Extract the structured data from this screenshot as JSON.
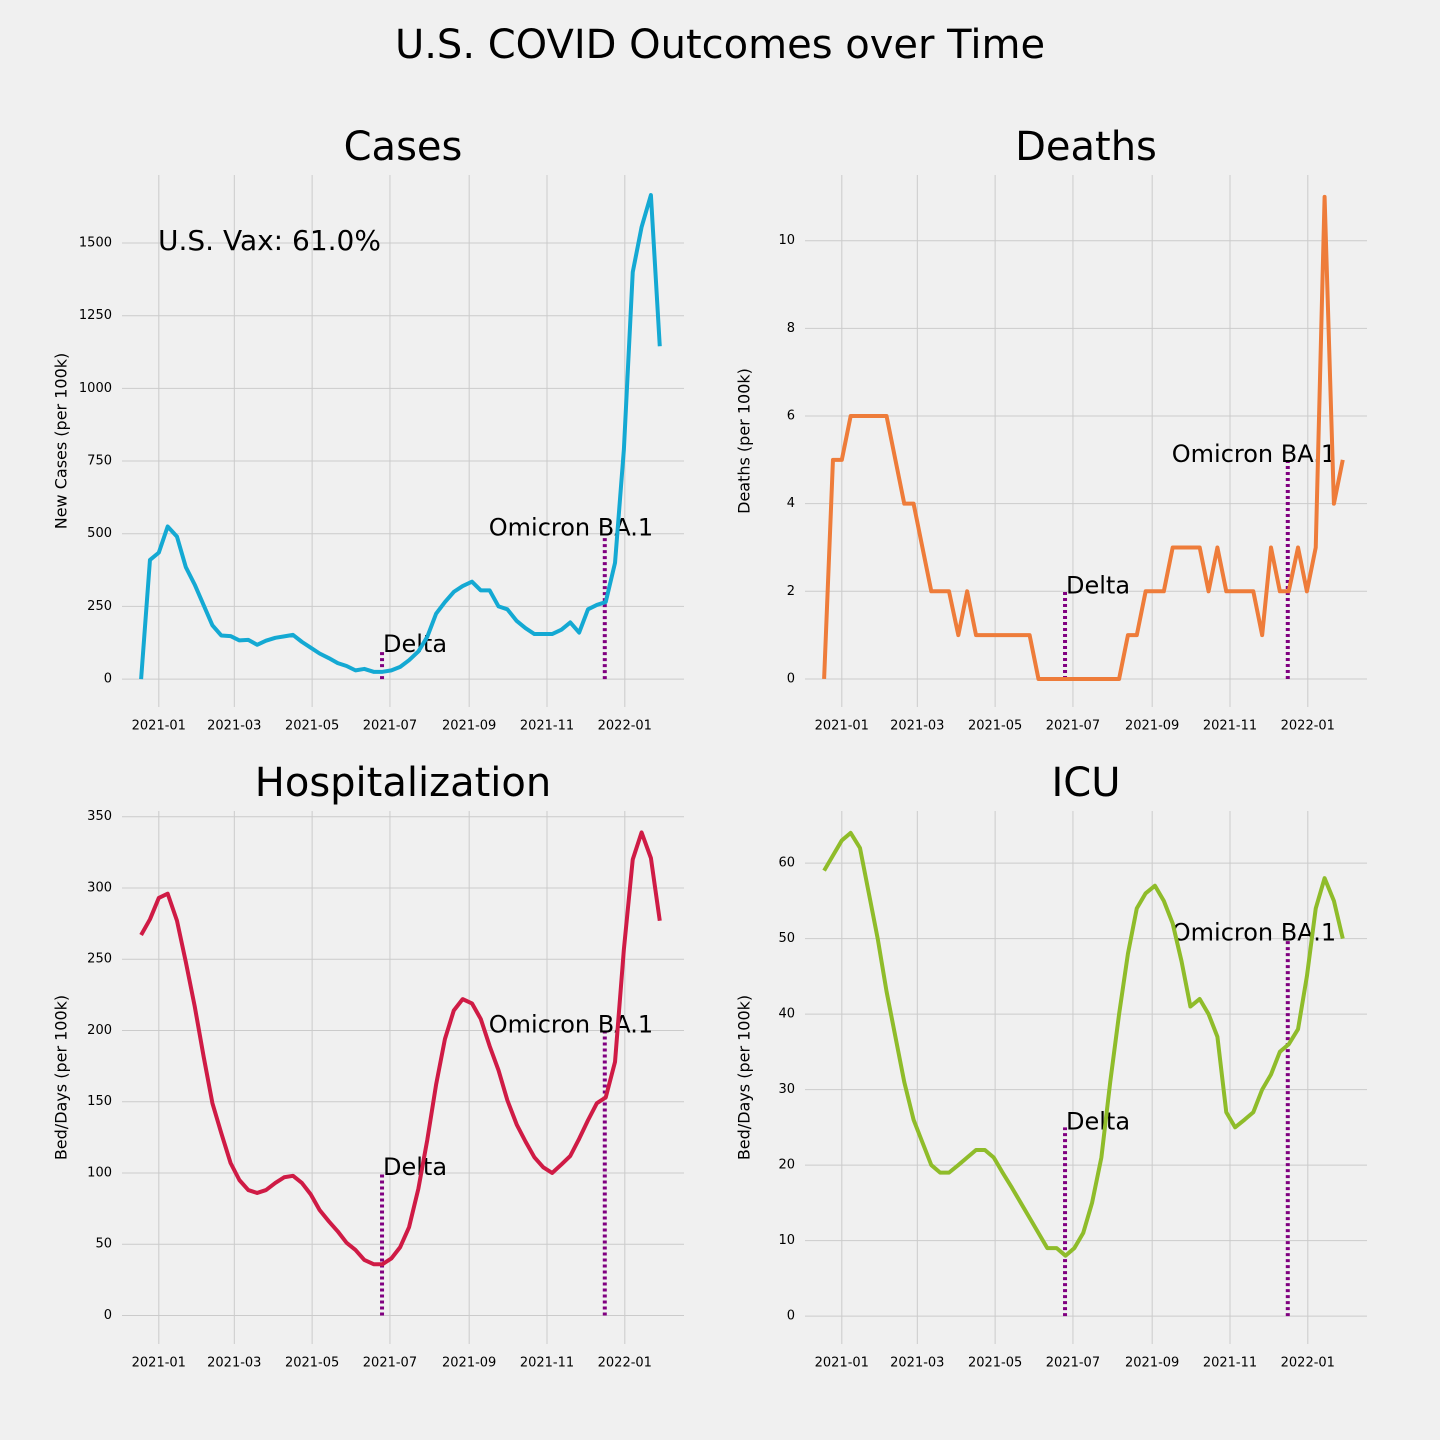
{
  "title": "U.S. COVID Outcomes over Time",
  "chart_data": [
    {
      "type": "line",
      "title": "Cases",
      "ylabel": "New Cases (per 100k)",
      "color": "#14a9d3",
      "note": "U.S. Vax: 61.0%",
      "x": [
        2020.962,
        2020.981,
        2021.0,
        2021.019,
        2021.039,
        2021.058,
        2021.077,
        2021.096,
        2021.115,
        2021.134,
        2021.154,
        2021.173,
        2021.192,
        2021.211,
        2021.23,
        2021.25,
        2021.269,
        2021.288,
        2021.307,
        2021.326,
        2021.345,
        2021.365,
        2021.384,
        2021.403,
        2021.422,
        2021.441,
        2021.461,
        2021.48,
        2021.499,
        2021.518,
        2021.537,
        2021.557,
        2021.576,
        2021.595,
        2021.614,
        2021.633,
        2021.652,
        2021.672,
        2021.691,
        2021.71,
        2021.729,
        2021.748,
        2021.768,
        2021.787,
        2021.806,
        2021.825,
        2021.844,
        2021.864,
        2021.883,
        2021.902,
        2021.921,
        2021.94,
        2021.959,
        2021.979,
        2021.998,
        2022.017,
        2022.036,
        2022.056,
        2022.075
      ],
      "values": [
        0,
        410,
        435,
        525,
        490,
        385,
        325,
        255,
        185,
        150,
        148,
        133,
        135,
        118,
        132,
        142,
        147,
        152,
        128,
        108,
        88,
        72,
        55,
        45,
        30,
        35,
        25,
        25,
        30,
        42,
        65,
        95,
        145,
        225,
        265,
        300,
        320,
        335,
        305,
        305,
        250,
        240,
        200,
        175,
        155,
        155,
        155,
        170,
        195,
        160,
        240,
        255,
        265,
        400,
        790,
        1400,
        1555,
        1665,
        1145
      ],
      "events": [
        {
          "label": "Delta",
          "x": 2021.479,
          "y": 100
        },
        {
          "label": "Omicron BA.1",
          "x": 2021.957,
          "y": 500
        }
      ],
      "event_color": "#800080",
      "xlim": [
        2020.921,
        2022.127
      ],
      "xticks": [
        {
          "value": 2021.0,
          "label": "2021-01"
        },
        {
          "value": 2021.162,
          "label": "2021-03"
        },
        {
          "value": 2021.329,
          "label": "2021-05"
        },
        {
          "value": 2021.496,
          "label": "2021-07"
        },
        {
          "value": 2021.666,
          "label": "2021-09"
        },
        {
          "value": 2021.833,
          "label": "2021-11"
        },
        {
          "value": 2022.0,
          "label": "2022-01"
        }
      ],
      "ylim": [
        -96,
        1734
      ],
      "yticks": [
        0,
        250,
        500,
        750,
        1000,
        1250,
        1500
      ],
      "grid": true
    },
    {
      "type": "line",
      "title": "Deaths",
      "ylabel": "Deaths (per 100k)",
      "color": "#ee7c3a",
      "x": [
        2020.962,
        2020.981,
        2021.0,
        2021.019,
        2021.039,
        2021.058,
        2021.077,
        2021.096,
        2021.115,
        2021.134,
        2021.154,
        2021.173,
        2021.192,
        2021.211,
        2021.23,
        2021.25,
        2021.269,
        2021.288,
        2021.307,
        2021.326,
        2021.345,
        2021.365,
        2021.384,
        2021.403,
        2021.422,
        2021.441,
        2021.461,
        2021.48,
        2021.499,
        2021.518,
        2021.537,
        2021.557,
        2021.576,
        2021.595,
        2021.614,
        2021.633,
        2021.652,
        2021.672,
        2021.691,
        2021.71,
        2021.729,
        2021.748,
        2021.768,
        2021.787,
        2021.806,
        2021.825,
        2021.844,
        2021.864,
        2021.883,
        2021.902,
        2021.921,
        2021.94,
        2021.959,
        2021.979,
        2021.998,
        2022.017,
        2022.036,
        2022.056,
        2022.075
      ],
      "values": [
        0,
        5,
        5,
        6,
        6,
        6,
        6,
        6,
        5,
        4,
        4,
        3,
        2,
        2,
        2,
        1,
        2,
        1,
        1,
        1,
        1,
        1,
        1,
        1,
        0,
        0,
        0,
        0,
        0,
        0,
        0,
        0,
        0,
        0,
        1,
        1,
        2,
        2,
        2,
        3,
        3,
        3,
        3,
        2,
        3,
        2,
        2,
        2,
        2,
        1,
        3,
        2,
        2,
        3,
        2,
        3,
        11,
        4,
        5
      ],
      "events": [
        {
          "label": "Delta",
          "x": 2021.479,
          "y": 2
        },
        {
          "label": "Omicron BA.1",
          "x": 2021.957,
          "y": 5
        }
      ],
      "event_color": "#800080",
      "xlim": [
        2020.921,
        2022.127
      ],
      "xticks": [
        {
          "value": 2021.0,
          "label": "2021-01"
        },
        {
          "value": 2021.162,
          "label": "2021-03"
        },
        {
          "value": 2021.329,
          "label": "2021-05"
        },
        {
          "value": 2021.496,
          "label": "2021-07"
        },
        {
          "value": 2021.666,
          "label": "2021-09"
        },
        {
          "value": 2021.833,
          "label": "2021-11"
        },
        {
          "value": 2022.0,
          "label": "2022-01"
        }
      ],
      "ylim": [
        -0.64,
        11.5
      ],
      "yticks": [
        0,
        2,
        4,
        6,
        8,
        10
      ],
      "grid": true
    },
    {
      "type": "line",
      "title": "Hospitalization",
      "ylabel": "Bed/Days (per 100k)",
      "color": "#cf1b45",
      "x": [
        2020.962,
        2020.981,
        2021.0,
        2021.019,
        2021.039,
        2021.058,
        2021.077,
        2021.096,
        2021.115,
        2021.134,
        2021.154,
        2021.173,
        2021.192,
        2021.211,
        2021.23,
        2021.25,
        2021.269,
        2021.288,
        2021.307,
        2021.326,
        2021.345,
        2021.365,
        2021.384,
        2021.403,
        2021.422,
        2021.441,
        2021.461,
        2021.48,
        2021.499,
        2021.518,
        2021.537,
        2021.557,
        2021.576,
        2021.595,
        2021.614,
        2021.633,
        2021.652,
        2021.672,
        2021.691,
        2021.71,
        2021.729,
        2021.748,
        2021.768,
        2021.787,
        2021.806,
        2021.825,
        2021.844,
        2021.864,
        2021.883,
        2021.902,
        2021.921,
        2021.94,
        2021.959,
        2021.979,
        2021.998,
        2022.017,
        2022.036,
        2022.056,
        2022.075
      ],
      "values": [
        267,
        278,
        293,
        296,
        277,
        248,
        217,
        182,
        149,
        128,
        107,
        95,
        88,
        86,
        88,
        93,
        97,
        98,
        93,
        85,
        74,
        66,
        59,
        51,
        46,
        39,
        36,
        36,
        40,
        48,
        62,
        89,
        123,
        162,
        194,
        214,
        222,
        219,
        208,
        189,
        172,
        151,
        134,
        122,
        111,
        104,
        100,
        106,
        112,
        124,
        137,
        149,
        153,
        178,
        257,
        320,
        339,
        321,
        277
      ],
      "events": [
        {
          "label": "Delta",
          "x": 2021.479,
          "y": 100
        },
        {
          "label": "Omicron BA.1",
          "x": 2021.957,
          "y": 200
        }
      ],
      "event_color": "#800080",
      "xlim": [
        2020.921,
        2022.127
      ],
      "xticks": [
        {
          "value": 2021.0,
          "label": "2021-01"
        },
        {
          "value": 2021.162,
          "label": "2021-03"
        },
        {
          "value": 2021.329,
          "label": "2021-05"
        },
        {
          "value": 2021.496,
          "label": "2021-07"
        },
        {
          "value": 2021.666,
          "label": "2021-09"
        },
        {
          "value": 2021.833,
          "label": "2021-11"
        },
        {
          "value": 2022.0,
          "label": "2022-01"
        }
      ],
      "ylim": [
        -20,
        354
      ],
      "yticks": [
        0,
        50,
        100,
        150,
        200,
        250,
        300,
        350
      ],
      "grid": true
    },
    {
      "type": "line",
      "title": "ICU",
      "ylabel": "Bed/Days (per 100k)",
      "color": "#8fbc2a",
      "x": [
        2020.962,
        2020.981,
        2021.0,
        2021.019,
        2021.039,
        2021.058,
        2021.077,
        2021.096,
        2021.115,
        2021.134,
        2021.154,
        2021.173,
        2021.192,
        2021.211,
        2021.23,
        2021.25,
        2021.269,
        2021.288,
        2021.307,
        2021.326,
        2021.345,
        2021.365,
        2021.384,
        2021.403,
        2021.422,
        2021.441,
        2021.461,
        2021.48,
        2021.499,
        2021.518,
        2021.537,
        2021.557,
        2021.576,
        2021.595,
        2021.614,
        2021.633,
        2021.652,
        2021.672,
        2021.691,
        2021.71,
        2021.729,
        2021.748,
        2021.768,
        2021.787,
        2021.806,
        2021.825,
        2021.844,
        2021.864,
        2021.883,
        2021.902,
        2021.921,
        2021.94,
        2021.959,
        2021.979,
        2021.998,
        2022.017,
        2022.036,
        2022.056,
        2022.075
      ],
      "values": [
        59,
        61,
        63,
        64,
        62,
        56,
        50,
        43,
        37,
        31,
        26,
        23,
        20,
        19,
        19,
        20,
        21,
        22,
        22,
        21,
        19,
        17,
        15,
        13,
        11,
        9,
        9,
        8,
        9,
        11,
        15,
        21,
        31,
        40,
        48,
        54,
        56,
        57,
        55,
        52,
        47,
        41,
        42,
        40,
        37,
        27,
        25,
        26,
        27,
        30,
        32,
        35,
        36,
        38,
        45,
        54,
        58,
        55,
        50
      ],
      "events": [
        {
          "label": "Delta",
          "x": 2021.479,
          "y": 25
        },
        {
          "label": "Omicron BA.1",
          "x": 2021.957,
          "y": 50
        }
      ],
      "event_color": "#800080",
      "xlim": [
        2020.921,
        2022.127
      ],
      "xticks": [
        {
          "value": 2021.0,
          "label": "2021-01"
        },
        {
          "value": 2021.162,
          "label": "2021-03"
        },
        {
          "value": 2021.329,
          "label": "2021-05"
        },
        {
          "value": 2021.496,
          "label": "2021-07"
        },
        {
          "value": 2021.666,
          "label": "2021-09"
        },
        {
          "value": 2021.833,
          "label": "2021-11"
        },
        {
          "value": 2022.0,
          "label": "2022-01"
        }
      ],
      "ylim": [
        -3.7,
        66.9
      ],
      "yticks": [
        0,
        10,
        20,
        30,
        40,
        50,
        60
      ],
      "grid": true
    }
  ]
}
